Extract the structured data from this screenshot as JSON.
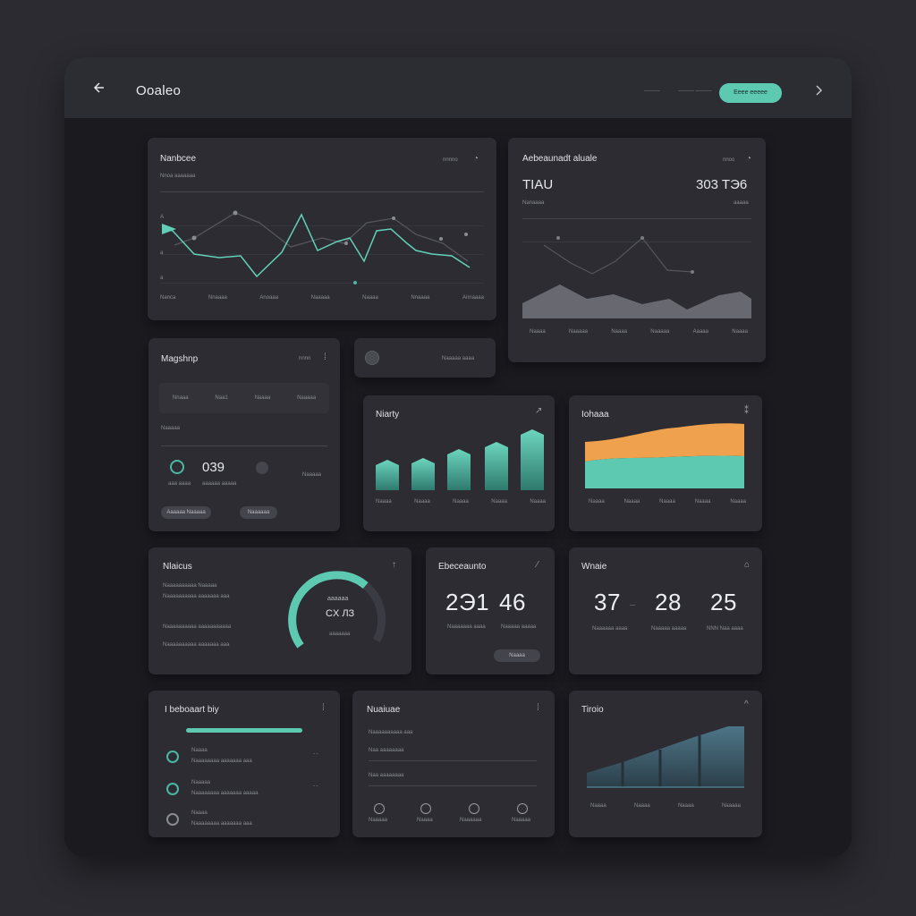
{
  "app": {
    "title": "Ooaleo"
  },
  "topbar": {
    "link1": "———",
    "link2": "——— ———",
    "cta_label": "Eeee eeeee"
  },
  "colors": {
    "accent": "#5ec9b1",
    "orange": "#f0a14e",
    "steel": "#4a6b7c",
    "bg": "#1a1a1f",
    "card": "#2c2c32"
  },
  "card_line": {
    "title": "Nanbcee",
    "subtitle": "Nnoa aaaaaaa",
    "badge": "nnnno",
    "x_labels": [
      "Nanca",
      "Nnaaaa",
      "Anoaaa",
      "Naaaaa",
      "Naaaa",
      "Nnaaaa",
      "Annaaaa"
    ]
  },
  "card_area_gray": {
    "title": "Aebeaunadt aluale",
    "badge": "nnoo",
    "value_left": "TIAU",
    "value_right": "303 TЭ6",
    "sub_left": "Nanaaaa",
    "sub_right": "aaaaa",
    "x_labels": [
      "Naaaa",
      "Naaaaa",
      "Naaaa",
      "Naaaaa",
      "Aaaaa",
      "Naaaa"
    ]
  },
  "card_mag": {
    "title": "Magshnp",
    "badge": "nnnn",
    "cols": [
      "Nnaaa",
      "Naa1",
      "Naaaa",
      "Naaaaa"
    ],
    "label": "Naaaaa",
    "value": "039",
    "value_sub": "aaaaaa aaaaa",
    "left_sub": "aaa aaaa",
    "right_sub": "Naaaaa",
    "btn1": "Aaaaaa Naaaaa",
    "btn2": "Naaaaaa"
  },
  "card_small": {
    "label": "Naaaaa aaaa"
  },
  "card_bar": {
    "title": "Niarty",
    "x_labels": [
      "Naaaa",
      "Naaaa",
      "Naaaa",
      "Naaaa",
      "Naaaa"
    ]
  },
  "card_stack": {
    "title": "Iohaaa",
    "x_labels": [
      "Naaaa",
      "Naaaa",
      "Naaaa",
      "Naaaa",
      "Naaaa"
    ]
  },
  "card_gauge": {
    "title": "Nlaicus",
    "line1": "Naaaaaaaaaa Naaaaa",
    "line2": "Naaaaaaaaaa aaaaaaa aaa",
    "line3": "Naaaaaaaaaa aaaaaaaaaaa",
    "gauge_value": "CX ЛЗ",
    "gauge_sub": "aaaaaa",
    "gauge_label": "aaaaaaa",
    "progress": 0.68
  },
  "card_stats": {
    "title": "Ebeceaunto",
    "value1": "2Э1",
    "value2": "46",
    "sub1": "Naaaaaaa aaaa",
    "sub2": "Naaaaa aaaaa",
    "btn": "Naaaa"
  },
  "card_nums": {
    "title": "Wnaie",
    "values": [
      "37",
      "28",
      "25"
    ],
    "subs": [
      "Naaaaaa aaaa",
      "Naaaaa aaaaa",
      "NNN Naa aaaa"
    ]
  },
  "card_list": {
    "title": "I beboaart biy",
    "items": [
      {
        "label": "Naaaa",
        "sub": "Naaaaaaaa aaaaaaa aaa"
      },
      {
        "label": "Naaaaa",
        "sub": "Naaaaaaaa aaaaaaa aaaaa"
      },
      {
        "label": "Naaaa",
        "sub": "Naaaaaaaa aaaaaaa aaa"
      }
    ]
  },
  "card_form": {
    "title": "Nuaiuae",
    "row1": "Naaaaaaaaaa aaa",
    "row2": "Naa aaaaaaaa",
    "row3": "Naa aaaaaaaa",
    "icon_labels": [
      "Naaaaa",
      "Naaaa",
      "Naaaaaa",
      "Naaaaa"
    ]
  },
  "card_steel": {
    "title": "Tiroio",
    "x_labels": [
      "Naaaa",
      "Naaaa",
      "Naaaa",
      "Naaaaa"
    ]
  }
}
